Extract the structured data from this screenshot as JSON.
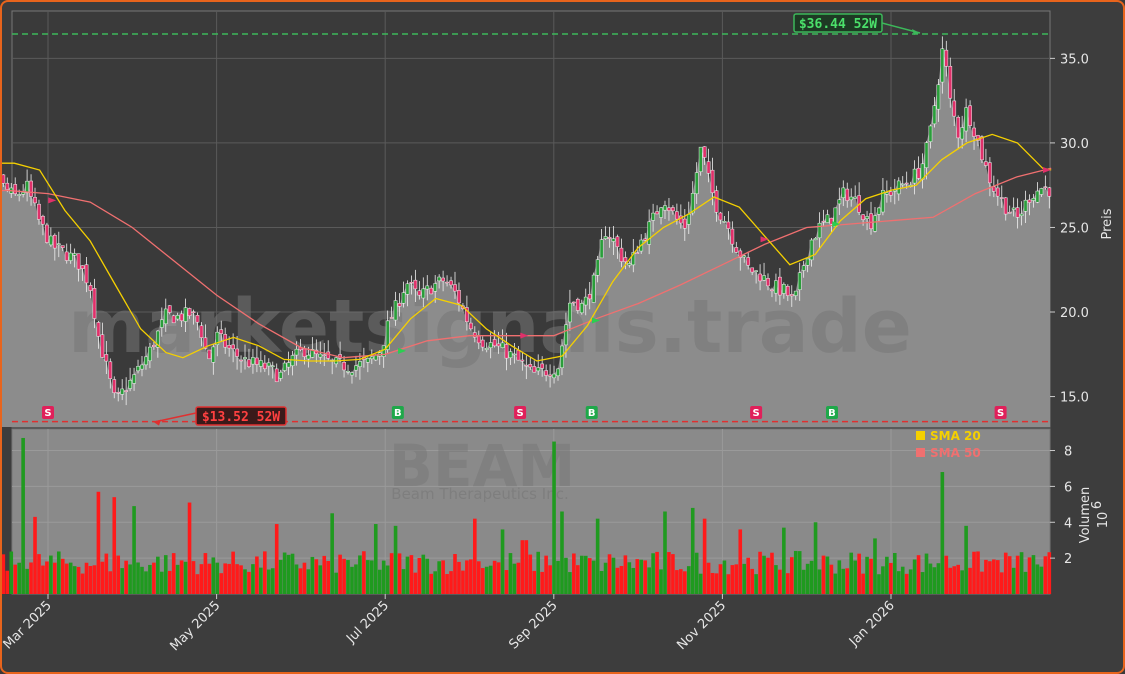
{
  "chart_data": {
    "type": "candlestick",
    "ticker": "BEAM",
    "company": "Beam Therapeutics Inc.",
    "watermark": "marketsignals.trade",
    "price_ylabel": "Preis",
    "volume_ylabel": "Volumen",
    "volume_exponent": "10",
    "volume_exponent_power": "6",
    "price_ylim": [
      13.2,
      37.8
    ],
    "volume_ylim": [
      0,
      9.2
    ],
    "price_ticks": [
      "15.0",
      "20.0",
      "25.0",
      "30.0",
      "35.0"
    ],
    "volume_ticks": [
      "2",
      "4",
      "6",
      "8"
    ],
    "x_ticks": [
      "Mar 2025",
      "May 2025",
      "Jul 2025",
      "Sep 2025",
      "Nov 2025",
      "Jan 2026"
    ],
    "high_52w": {
      "value": 36.44,
      "label": "$36.44 52W"
    },
    "low_52w": {
      "value": 13.52,
      "label": "$13.52 52W"
    },
    "legend": [
      {
        "name": "SMA 20",
        "color": "#f5d000"
      },
      {
        "name": "SMA 50",
        "color": "#f07070"
      }
    ],
    "signals": [
      {
        "type": "S",
        "month_offset": 1.0
      },
      {
        "type": "B",
        "month_offset": 5.15
      },
      {
        "type": "S",
        "month_offset": 6.6
      },
      {
        "type": "B",
        "month_offset": 7.45
      },
      {
        "type": "S",
        "month_offset": 9.4
      },
      {
        "type": "B",
        "month_offset": 10.3
      },
      {
        "type": "S",
        "month_offset": 12.3
      }
    ],
    "price_path": [
      [
        0.0,
        33.6
      ],
      [
        0.15,
        33.0
      ],
      [
        0.3,
        30.2
      ],
      [
        0.45,
        27.5
      ],
      [
        0.6,
        26.8
      ],
      [
        0.75,
        27.4
      ],
      [
        0.9,
        25.3
      ],
      [
        1.05,
        23.9
      ],
      [
        1.2,
        23.5
      ],
      [
        1.35,
        23.0
      ],
      [
        1.5,
        21.6
      ],
      [
        1.6,
        18.5
      ],
      [
        1.7,
        16.6
      ],
      [
        1.8,
        14.6
      ],
      [
        1.9,
        15.4
      ],
      [
        2.0,
        16.0
      ],
      [
        2.1,
        16.8
      ],
      [
        2.2,
        17.6
      ],
      [
        2.3,
        18.7
      ],
      [
        2.4,
        19.8
      ],
      [
        2.55,
        19.7
      ],
      [
        2.7,
        19.9
      ],
      [
        2.8,
        19.2
      ],
      [
        2.9,
        17.1
      ],
      [
        3.0,
        18.6
      ],
      [
        3.15,
        17.8
      ],
      [
        3.3,
        17.2
      ],
      [
        3.45,
        16.9
      ],
      [
        3.6,
        16.7
      ],
      [
        3.75,
        16.2
      ],
      [
        3.9,
        17.2
      ],
      [
        4.05,
        17.8
      ],
      [
        4.2,
        17.3
      ],
      [
        4.4,
        16.9
      ],
      [
        4.6,
        16.8
      ],
      [
        4.8,
        17.0
      ],
      [
        4.95,
        17.8
      ],
      [
        5.05,
        19.5
      ],
      [
        5.15,
        20.5
      ],
      [
        5.25,
        21.8
      ],
      [
        5.4,
        20.8
      ],
      [
        5.55,
        21.5
      ],
      [
        5.7,
        21.9
      ],
      [
        5.85,
        21.0
      ],
      [
        6.0,
        19.2
      ],
      [
        6.15,
        18.3
      ],
      [
        6.3,
        18.0
      ],
      [
        6.45,
        17.6
      ],
      [
        6.6,
        17.0
      ],
      [
        6.75,
        16.3
      ],
      [
        6.9,
        16.5
      ],
      [
        7.05,
        16.8
      ],
      [
        7.2,
        20.8
      ],
      [
        7.35,
        20.3
      ],
      [
        7.5,
        22.1
      ],
      [
        7.6,
        24.9
      ],
      [
        7.7,
        24.3
      ],
      [
        7.8,
        23.3
      ],
      [
        7.9,
        22.7
      ],
      [
        8.0,
        23.9
      ],
      [
        8.15,
        25.2
      ],
      [
        8.3,
        26.8
      ],
      [
        8.45,
        25.5
      ],
      [
        8.55,
        25.0
      ],
      [
        8.65,
        27.0
      ],
      [
        8.75,
        29.8
      ],
      [
        8.85,
        27.5
      ],
      [
        8.95,
        26.0
      ],
      [
        9.05,
        25.3
      ],
      [
        9.15,
        24.0
      ],
      [
        9.3,
        22.6
      ],
      [
        9.45,
        22.2
      ],
      [
        9.6,
        21.5
      ],
      [
        9.75,
        21.2
      ],
      [
        9.85,
        20.5
      ],
      [
        9.95,
        22.6
      ],
      [
        10.05,
        24.2
      ],
      [
        10.15,
        25.0
      ],
      [
        10.3,
        25.6
      ],
      [
        10.45,
        27.1
      ],
      [
        10.6,
        26.5
      ],
      [
        10.75,
        25.2
      ],
      [
        10.9,
        26.8
      ],
      [
        11.05,
        27.3
      ],
      [
        11.2,
        27.7
      ],
      [
        11.35,
        28.4
      ],
      [
        11.45,
        30.1
      ],
      [
        11.55,
        33.4
      ],
      [
        11.62,
        35.8
      ],
      [
        11.7,
        32.5
      ],
      [
        11.8,
        30.5
      ],
      [
        11.9,
        32.0
      ],
      [
        12.0,
        30.6
      ],
      [
        12.1,
        28.9
      ],
      [
        12.2,
        27.5
      ],
      [
        12.35,
        26.3
      ],
      [
        12.5,
        25.5
      ],
      [
        12.65,
        26.9
      ],
      [
        12.8,
        27.4
      ],
      [
        12.9,
        27.2
      ]
    ],
    "sma20_path": [
      [
        0.0,
        27.3
      ],
      [
        0.3,
        28.8
      ],
      [
        0.6,
        28.8
      ],
      [
        0.9,
        28.4
      ],
      [
        1.2,
        26.0
      ],
      [
        1.5,
        24.2
      ],
      [
        1.8,
        21.6
      ],
      [
        2.1,
        19.0
      ],
      [
        2.4,
        17.6
      ],
      [
        2.6,
        17.3
      ],
      [
        2.9,
        18.0
      ],
      [
        3.2,
        18.5
      ],
      [
        3.5,
        18.0
      ],
      [
        3.8,
        17.2
      ],
      [
        4.1,
        17.1
      ],
      [
        4.4,
        17.1
      ],
      [
        4.7,
        17.2
      ],
      [
        5.0,
        17.8
      ],
      [
        5.3,
        19.6
      ],
      [
        5.6,
        20.8
      ],
      [
        5.9,
        20.4
      ],
      [
        6.2,
        19.0
      ],
      [
        6.5,
        18.0
      ],
      [
        6.8,
        17.1
      ],
      [
        7.1,
        17.4
      ],
      [
        7.4,
        19.2
      ],
      [
        7.7,
        21.8
      ],
      [
        8.0,
        23.8
      ],
      [
        8.3,
        25.0
      ],
      [
        8.6,
        25.8
      ],
      [
        8.9,
        26.8
      ],
      [
        9.2,
        26.2
      ],
      [
        9.5,
        24.5
      ],
      [
        9.8,
        22.8
      ],
      [
        10.1,
        23.4
      ],
      [
        10.4,
        25.4
      ],
      [
        10.7,
        26.7
      ],
      [
        11.0,
        27.2
      ],
      [
        11.3,
        27.5
      ],
      [
        11.6,
        29.0
      ],
      [
        11.9,
        30.0
      ],
      [
        12.2,
        30.5
      ],
      [
        12.5,
        30.0
      ],
      [
        12.8,
        28.5
      ],
      [
        12.9,
        28.4
      ]
    ],
    "sma50_path": [
      [
        0.0,
        27.0
      ],
      [
        0.5,
        27.2
      ],
      [
        1.0,
        27.0
      ],
      [
        1.5,
        26.5
      ],
      [
        2.0,
        25.0
      ],
      [
        2.5,
        23.0
      ],
      [
        3.0,
        21.0
      ],
      [
        3.5,
        19.3
      ],
      [
        4.0,
        17.9
      ],
      [
        4.5,
        17.3
      ],
      [
        5.0,
        17.5
      ],
      [
        5.5,
        18.3
      ],
      [
        6.0,
        18.6
      ],
      [
        6.5,
        18.6
      ],
      [
        7.0,
        18.6
      ],
      [
        7.5,
        19.6
      ],
      [
        8.0,
        20.5
      ],
      [
        8.5,
        21.6
      ],
      [
        9.0,
        22.8
      ],
      [
        9.5,
        24.0
      ],
      [
        10.0,
        25.0
      ],
      [
        10.5,
        25.2
      ],
      [
        11.0,
        25.4
      ],
      [
        11.5,
        25.6
      ],
      [
        12.0,
        27.0
      ],
      [
        12.5,
        28.0
      ],
      [
        12.9,
        28.5
      ]
    ],
    "volume_spikes": [
      [
        0.7,
        8.7
      ],
      [
        0.85,
        4.3
      ],
      [
        1.6,
        5.7
      ],
      [
        1.8,
        5.4
      ],
      [
        2.0,
        4.9
      ],
      [
        2.7,
        5.1
      ],
      [
        3.7,
        3.9
      ],
      [
        4.35,
        4.5
      ],
      [
        4.9,
        3.9
      ],
      [
        5.1,
        3.8
      ],
      [
        6.05,
        4.2
      ],
      [
        6.4,
        3.6
      ],
      [
        6.65,
        3.0
      ],
      [
        7.0,
        8.5
      ],
      [
        7.1,
        4.6
      ],
      [
        7.5,
        4.2
      ],
      [
        8.3,
        4.6
      ],
      [
        8.65,
        4.8
      ],
      [
        8.8,
        4.2
      ],
      [
        9.2,
        3.6
      ],
      [
        9.75,
        3.7
      ],
      [
        10.1,
        4.0
      ],
      [
        10.8,
        3.1
      ],
      [
        11.6,
        6.8
      ],
      [
        11.9,
        3.8
      ]
    ]
  }
}
